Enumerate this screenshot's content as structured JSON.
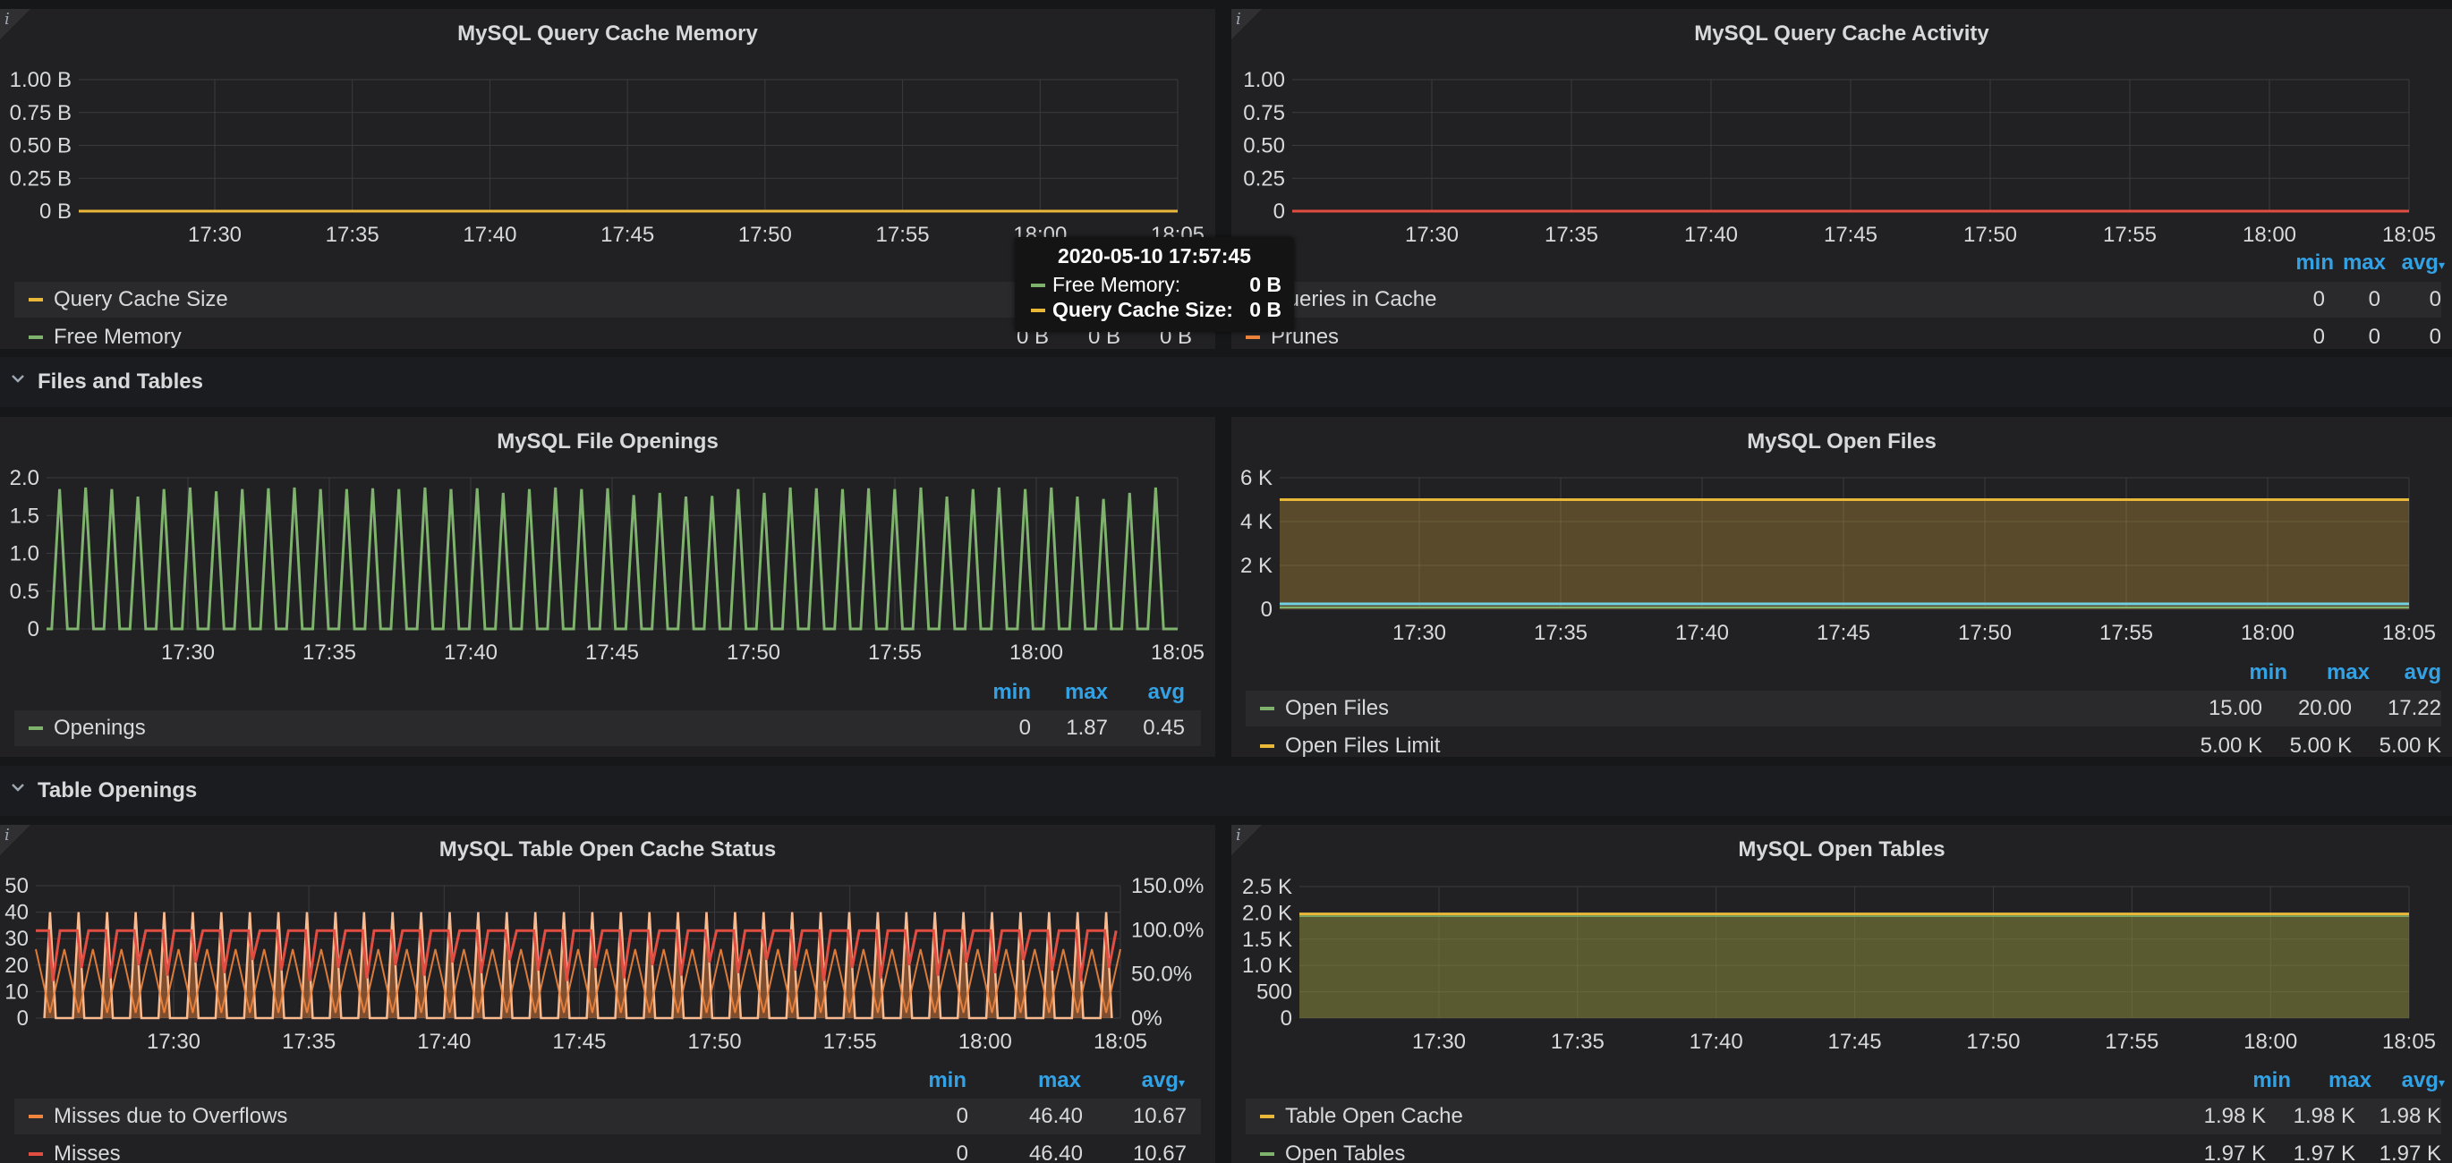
{
  "colors": {
    "green": "#7eb26d",
    "yellow": "#eab839",
    "orange": "#ef843c",
    "red": "#e24d42",
    "cyan": "#6ed0e0",
    "blue_header": "#33a2e5"
  },
  "time_ticks": [
    "17:30",
    "17:35",
    "17:40",
    "17:45",
    "17:50",
    "17:55",
    "18:00",
    "18:05"
  ],
  "info_icon": "info-icon",
  "rows": {
    "files_and_tables": "Files and Tables",
    "table_openings": "Table Openings"
  },
  "panels": {
    "cache_memory": {
      "title": "MySQL Query Cache Memory",
      "yticks": [
        "1.00 B",
        "0.75 B",
        "0.50 B",
        "0.25 B",
        "0 B"
      ],
      "legend": [
        {
          "name": "Query Cache Size",
          "color": "#eab839"
        },
        {
          "name": "Free Memory",
          "color": "#7eb26d",
          "min": "0 B",
          "max": "0 B",
          "avg": "0 B"
        }
      ]
    },
    "cache_activity": {
      "title": "MySQL Query Cache Activity",
      "yticks": [
        "1.00",
        "0.75",
        "0.50",
        "0.25",
        "0"
      ],
      "legend_headers": {
        "min": "min",
        "max": "max",
        "avg": "avg"
      },
      "legend": [
        {
          "name": "Queries in Cache",
          "color": "#e24d42",
          "min": "0",
          "max": "0",
          "avg": "0"
        },
        {
          "name": "Prunes",
          "color": "#ef843c",
          "min": "0",
          "max": "0",
          "avg": "0"
        }
      ]
    },
    "file_openings": {
      "title": "MySQL File Openings",
      "yticks": [
        "2.0",
        "1.5",
        "1.0",
        "0.5",
        "0"
      ],
      "legend_headers": {
        "min": "min",
        "max": "max",
        "avg": "avg"
      },
      "legend": [
        {
          "name": "Openings",
          "color": "#7eb26d",
          "min": "0",
          "max": "1.87",
          "avg": "0.45"
        }
      ]
    },
    "open_files": {
      "title": "MySQL Open Files",
      "yticks": [
        "6 K",
        "4 K",
        "2 K",
        "0"
      ],
      "legend_headers": {
        "min": "min",
        "max": "max",
        "avg": "avg"
      },
      "legend": [
        {
          "name": "Open Files",
          "color": "#7eb26d",
          "min": "15.00",
          "max": "20.00",
          "avg": "17.22"
        },
        {
          "name": "Open Files Limit",
          "color": "#eab839",
          "min": "5.00 K",
          "max": "5.00 K",
          "avg": "5.00 K"
        }
      ]
    },
    "table_cache_status": {
      "title": "MySQL Table Open Cache Status",
      "yticks": [
        "50",
        "40",
        "30",
        "20",
        "10",
        "0"
      ],
      "yticks_right": [
        "150.0%",
        "100.0%",
        "50.0%",
        "0%"
      ],
      "legend_headers": {
        "min": "min",
        "max": "max",
        "avg": "avg"
      },
      "legend": [
        {
          "name": "Misses due to Overflows",
          "color": "#ef843c",
          "min": "0",
          "max": "46.40",
          "avg": "10.67"
        },
        {
          "name": "Misses",
          "color": "#e24d42",
          "min": "0",
          "max": "46.40",
          "avg": "10.67"
        }
      ]
    },
    "open_tables": {
      "title": "MySQL Open Tables",
      "yticks": [
        "2.5 K",
        "2.0 K",
        "1.5 K",
        "1.0 K",
        "500",
        "0"
      ],
      "legend_headers": {
        "min": "min",
        "max": "max",
        "avg": "avg"
      },
      "legend": [
        {
          "name": "Table Open Cache",
          "color": "#eab839",
          "min": "1.98 K",
          "max": "1.98 K",
          "avg": "1.98 K"
        },
        {
          "name": "Open Tables",
          "color": "#7eb26d",
          "min": "1.97 K",
          "max": "1.97 K",
          "avg": "1.97 K"
        }
      ]
    }
  },
  "tooltip": {
    "time": "2020-05-10 17:57:45",
    "rows": [
      {
        "name": "Free Memory:",
        "value": "0 B",
        "color": "#7eb26d"
      },
      {
        "name": "Query Cache Size:",
        "value": "0 B",
        "color": "#eab839"
      }
    ]
  },
  "chart_data": [
    {
      "type": "line",
      "title": "MySQL Query Cache Memory",
      "x": [
        "17:30",
        "17:35",
        "17:40",
        "17:45",
        "17:50",
        "17:55",
        "18:00",
        "18:05"
      ],
      "ylim": [
        0,
        1
      ],
      "series": [
        {
          "name": "Query Cache Size",
          "values": [
            0,
            0,
            0,
            0,
            0,
            0,
            0,
            0
          ]
        },
        {
          "name": "Free Memory",
          "values": [
            0,
            0,
            0,
            0,
            0,
            0,
            0,
            0
          ]
        }
      ]
    },
    {
      "type": "line",
      "title": "MySQL Query Cache Activity",
      "x": [
        "17:30",
        "17:35",
        "17:40",
        "17:45",
        "17:50",
        "17:55",
        "18:00",
        "18:05"
      ],
      "ylim": [
        0,
        1
      ],
      "series": [
        {
          "name": "Queries in Cache",
          "values": [
            0,
            0,
            0,
            0,
            0,
            0,
            0,
            0
          ]
        },
        {
          "name": "Prunes",
          "values": [
            0,
            0,
            0,
            0,
            0,
            0,
            0,
            0
          ]
        }
      ]
    },
    {
      "type": "line",
      "title": "MySQL File Openings",
      "ylim": [
        0,
        2
      ],
      "series": [
        {
          "name": "Openings",
          "peaks": [
            1.85,
            1.87,
            1.85,
            1.75,
            1.85,
            1.87,
            1.82,
            1.85,
            1.86,
            1.87,
            1.85,
            1.85,
            1.86,
            1.85,
            1.87,
            1.85,
            1.86,
            1.8,
            1.85,
            1.87,
            1.85,
            1.86,
            1.77,
            1.8,
            1.75,
            1.76,
            1.85,
            1.8,
            1.87,
            1.86,
            1.85,
            1.86,
            1.85,
            1.87,
            1.75,
            1.85,
            1.87,
            1.85,
            1.87,
            1.75,
            1.72,
            1.8,
            1.87
          ]
        }
      ]
    },
    {
      "type": "area",
      "title": "MySQL Open Files",
      "ylim": [
        0,
        6000
      ],
      "series": [
        {
          "name": "Open Files Limit",
          "values": [
            5000,
            5000
          ]
        },
        {
          "name": "Open Files",
          "values": [
            17,
            17
          ]
        }
      ]
    },
    {
      "type": "line",
      "title": "MySQL Table Open Cache Status",
      "ylim": [
        0,
        50
      ],
      "series": [
        {
          "name": "Misses due to Overflows",
          "max": 46.4
        },
        {
          "name": "Misses",
          "max": 46.4
        }
      ]
    },
    {
      "type": "area",
      "title": "MySQL Open Tables",
      "ylim": [
        0,
        2500
      ],
      "series": [
        {
          "name": "Table Open Cache",
          "values": [
            1980,
            1980
          ]
        },
        {
          "name": "Open Tables",
          "values": [
            1970,
            1970
          ]
        }
      ]
    }
  ]
}
